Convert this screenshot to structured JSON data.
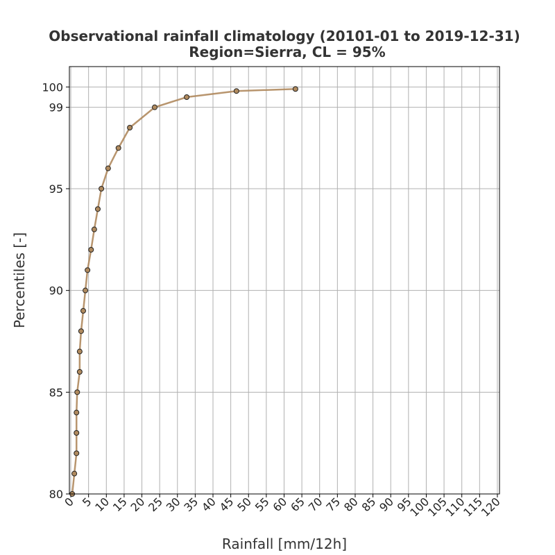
{
  "chart_data": {
    "type": "line",
    "title": "Observational rainfall climatology (20101-01 to 2019-12-31)",
    "subtitle": "Region=Sierra, CL = 95%",
    "x_label": "Rainfall [mm/12h]",
    "y_label": "Percentiles [-]",
    "xlim": [
      -0.4,
      120.6
    ],
    "ylim": [
      80,
      101
    ],
    "xticks": [
      0,
      5,
      10,
      15,
      20,
      25,
      30,
      35,
      40,
      45,
      50,
      55,
      60,
      65,
      70,
      75,
      80,
      85,
      90,
      95,
      100,
      105,
      110,
      115,
      120
    ],
    "yticks": [
      80,
      85,
      90,
      95,
      99,
      100
    ],
    "grid": true,
    "series": [
      {
        "color": "#b08a5e",
        "x": [
          0.4,
          1.0,
          1.6,
          1.6,
          1.6,
          1.8,
          2.5,
          2.5,
          2.9,
          3.5,
          4.1,
          4.7,
          5.7,
          6.6,
          7.6,
          8.6,
          10.5,
          13.4,
          16.6,
          23.6,
          32.6,
          46.6,
          63.2
        ],
        "values": [
          80,
          81,
          82,
          83,
          84,
          85,
          86,
          87,
          88,
          89,
          90,
          91,
          92,
          93,
          94,
          95,
          96,
          97,
          98,
          99,
          99.5,
          99.8,
          99.9
        ]
      }
    ]
  }
}
